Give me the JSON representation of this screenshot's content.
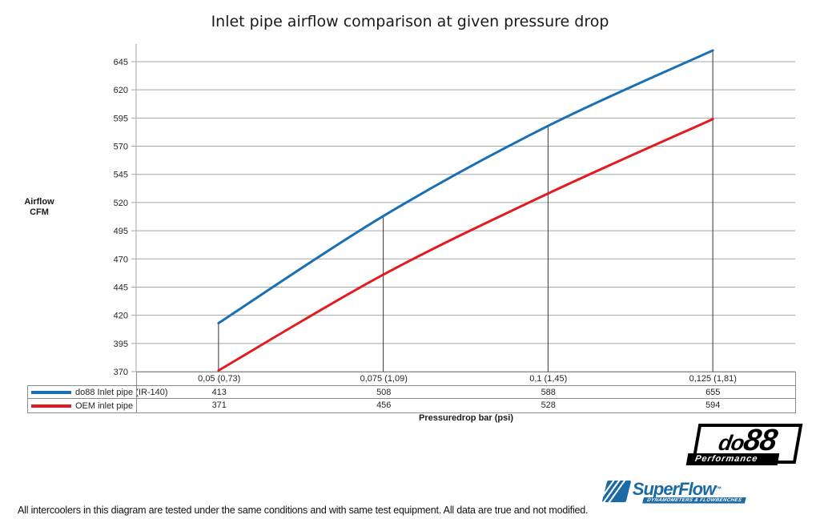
{
  "chart_data": {
    "type": "line",
    "title": "Inlet pipe airflow comparison at given pressure drop",
    "xlabel": "Pressuredrop bar (psi)",
    "ylabel": "Airflow CFM",
    "categories": [
      "0,05 (0,73)",
      "0,075 (1,09)",
      "0,1 (1,45)",
      "0,125 (1,81)"
    ],
    "series": [
      {
        "name": "do88 Inlet pipe (IR-140)",
        "color": "#1a6fb5",
        "values": [
          413,
          508,
          588,
          655
        ]
      },
      {
        "name": "OEM inlet pipe",
        "color": "#e31b20",
        "values": [
          371,
          456,
          528,
          594
        ]
      }
    ],
    "ylim": [
      370,
      645
    ],
    "yticks": [
      370,
      395,
      420,
      445,
      470,
      495,
      520,
      545,
      570,
      595,
      620,
      645
    ],
    "grid": "horizontal",
    "droplines": true,
    "legend_position": "table-left"
  },
  "y_axis_label": {
    "line1": "Airflow",
    "line2": "CFM"
  },
  "footer_note": "All intercoolers in this diagram are tested under the same conditions and with same test equipment. All data are true and not modified.",
  "colors": {
    "do88_blue": "#1a6fb5",
    "oem_red": "#e31b20",
    "gridline": "#a6a6a6",
    "axis": "#a6a6a6",
    "dropline": "#333333",
    "table_border": "#8c8c8c",
    "superflow_blue": "#1a6aa5",
    "do88_black": "#000000"
  },
  "logos": {
    "do88": {
      "part1": "do",
      "part2": "88",
      "tagline": "Performance"
    },
    "superflow": {
      "name": "SuperFlow",
      "tm": "™",
      "tagline": "DYNAMOMETERS & FLOWBENCHES"
    }
  }
}
